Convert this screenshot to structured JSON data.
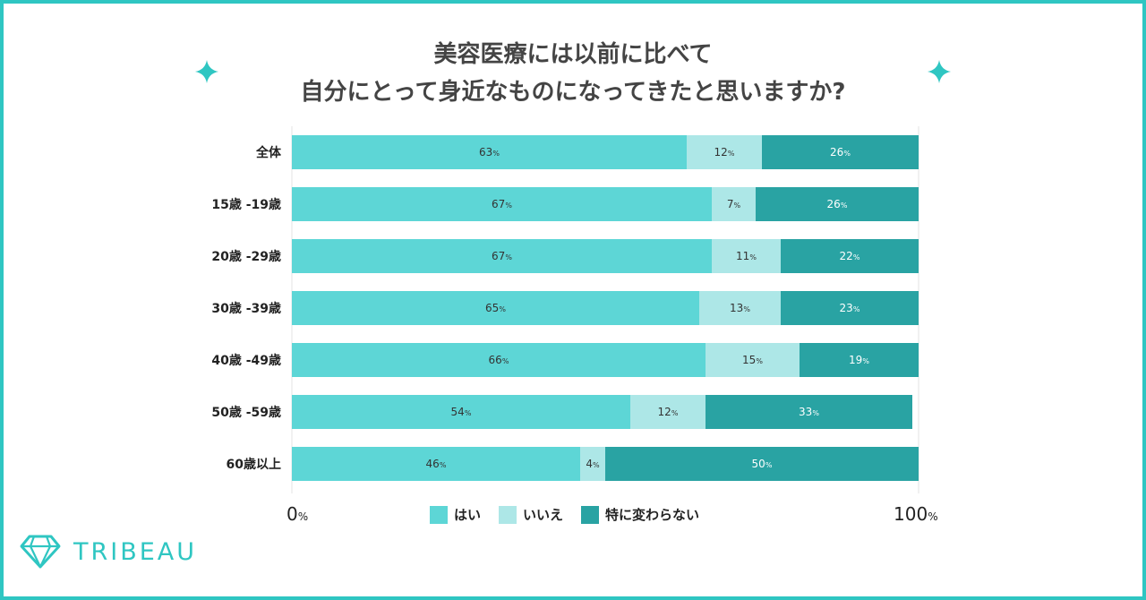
{
  "title_lines": [
    "美容医療には以前に比べて",
    "自分にとって身近なものになってきたと思いますか?"
  ],
  "brand": "TRIBEAU",
  "colors": {
    "border": "#2fc6c2",
    "yes": "#5dd6d6",
    "no": "#ade7e7",
    "neutral": "#29a3a3"
  },
  "chart_data": {
    "type": "bar",
    "orientation": "horizontal",
    "stacked": true,
    "categories": [
      "全体",
      "15歳 -19歳",
      "20歳 -29歳",
      "30歳 -39歳",
      "40歳 -49歳",
      "50歳 -59歳",
      "60歳以上"
    ],
    "series": [
      {
        "name": "はい",
        "values": [
          63,
          67,
          67,
          65,
          66,
          54,
          46
        ]
      },
      {
        "name": "いいえ",
        "values": [
          12,
          7,
          11,
          13,
          15,
          12,
          4
        ]
      },
      {
        "name": "特に変わらない",
        "values": [
          26,
          26,
          22,
          23,
          19,
          33,
          50
        ]
      }
    ],
    "unit": "%",
    "xlim": [
      0,
      100
    ],
    "axis_labels": {
      "min": "0",
      "max": "100",
      "unit": "%"
    },
    "legend_position": "bottom"
  }
}
